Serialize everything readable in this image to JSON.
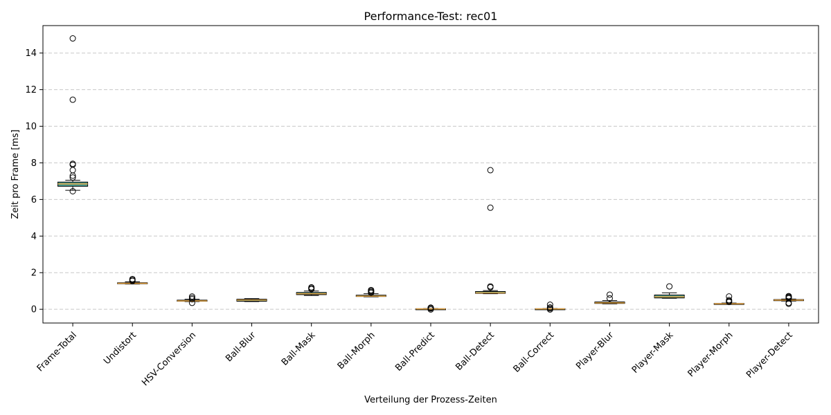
{
  "chart_data": {
    "type": "box",
    "title": "Performance-Test: rec01",
    "xlabel": "Verteilung der Prozess-Zeiten",
    "ylabel": "Zeit pro Frame [ms]",
    "ylim": [
      -0.75,
      15.5
    ],
    "yticks": [
      0,
      2,
      4,
      6,
      8,
      10,
      12,
      14
    ],
    "grid": "y-dashed",
    "colors": {
      "box_fill": "#4a9e94",
      "median": "#e8a33d",
      "whisker": "#000000",
      "grid": "#c8c8c8"
    },
    "categories": [
      "Frame-Total",
      "Undistort",
      "HSV-Conversion",
      "Ball-Blur",
      "Ball-Mask",
      "Ball-Morph",
      "Ball-Predict",
      "Ball-Detect",
      "Ball-Correct",
      "Player-Blur",
      "Player-Mask",
      "Player-Morph",
      "Player-Detect"
    ],
    "boxes": [
      {
        "whislo": 6.5,
        "q1": 6.72,
        "med": 6.85,
        "q3": 6.95,
        "whishi": 7.05,
        "fliers": [
          14.8,
          11.45,
          7.95,
          7.9,
          7.6,
          7.3,
          7.2,
          6.45
        ]
      },
      {
        "whislo": 1.38,
        "q1": 1.4,
        "med": 1.42,
        "q3": 1.45,
        "whishi": 1.5,
        "fliers": [
          1.65,
          1.6,
          1.55
        ]
      },
      {
        "whislo": 0.42,
        "q1": 0.44,
        "med": 0.46,
        "q3": 0.5,
        "whishi": 0.55,
        "fliers": [
          0.7,
          0.62,
          0.55,
          0.35
        ]
      },
      {
        "whislo": 0.42,
        "q1": 0.44,
        "med": 0.5,
        "q3": 0.55,
        "whishi": 0.58,
        "fliers": []
      },
      {
        "whislo": 0.75,
        "q1": 0.8,
        "med": 0.85,
        "q3": 0.92,
        "whishi": 1.0,
        "fliers": [
          1.2,
          1.15,
          1.1
        ]
      },
      {
        "whislo": 0.68,
        "q1": 0.7,
        "med": 0.72,
        "q3": 0.77,
        "whishi": 0.85,
        "fliers": [
          1.05,
          1.0,
          0.95,
          0.9
        ]
      },
      {
        "whislo": 0.0,
        "q1": 0.01,
        "med": 0.02,
        "q3": 0.03,
        "whishi": 0.04,
        "fliers": [
          0.09,
          0.07,
          0.05,
          -0.01
        ]
      },
      {
        "whislo": 0.85,
        "q1": 0.87,
        "med": 0.9,
        "q3": 0.97,
        "whishi": 1.02,
        "fliers": [
          7.6,
          5.55,
          1.25,
          1.2
        ]
      },
      {
        "whislo": 0.0,
        "q1": 0.01,
        "med": 0.02,
        "q3": 0.03,
        "whishi": 0.04,
        "fliers": [
          0.25,
          0.1,
          0.05,
          -0.01
        ]
      },
      {
        "whislo": 0.3,
        "q1": 0.32,
        "med": 0.35,
        "q3": 0.4,
        "whishi": 0.48,
        "fliers": [
          0.8,
          0.6
        ]
      },
      {
        "whislo": 0.6,
        "q1": 0.62,
        "med": 0.68,
        "q3": 0.78,
        "whishi": 0.9,
        "fliers": [
          1.25
        ]
      },
      {
        "whislo": 0.28,
        "q1": 0.29,
        "med": 0.3,
        "q3": 0.32,
        "whishi": 0.34,
        "fliers": [
          0.7,
          0.5,
          0.45,
          0.4
        ]
      },
      {
        "whislo": 0.45,
        "q1": 0.47,
        "med": 0.5,
        "q3": 0.53,
        "whishi": 0.56,
        "fliers": [
          0.72,
          0.68,
          0.65,
          0.6,
          0.35,
          0.3
        ]
      }
    ]
  }
}
